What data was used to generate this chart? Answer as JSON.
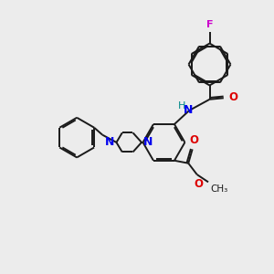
{
  "bg_color": "#ececec",
  "bond_color": "#1a1a1a",
  "N_color": "#0000ee",
  "O_color": "#dd0000",
  "F_color": "#cc00cc",
  "H_color": "#008888",
  "lw": 1.4,
  "dbo": 0.055,
  "xlim": [
    0,
    10
  ],
  "ylim": [
    0,
    10
  ]
}
